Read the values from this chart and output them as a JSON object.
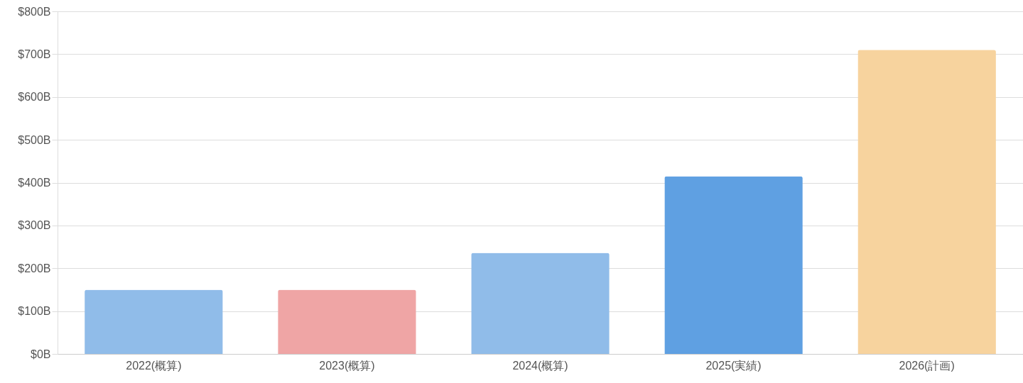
{
  "chart_data": {
    "type": "bar",
    "categories": [
      "2022(概算)",
      "2023(概算)",
      "2024(概算)",
      "2025(実績)",
      "2026(計画)"
    ],
    "values": [
      150,
      150,
      236,
      415,
      710
    ],
    "colors": [
      "#90bce9",
      "#efa5a5",
      "#90bce9",
      "#5fa0e2",
      "#f7d39e"
    ],
    "ylim": [
      0,
      800
    ],
    "yticks": [
      {
        "value": 0,
        "label": "$0B"
      },
      {
        "value": 100,
        "label": "$100B"
      },
      {
        "value": 200,
        "label": "$200B"
      },
      {
        "value": 300,
        "label": "$300B"
      },
      {
        "value": 400,
        "label": "$400B"
      },
      {
        "value": 500,
        "label": "$500B"
      },
      {
        "value": 600,
        "label": "$600B"
      },
      {
        "value": 700,
        "label": "$700B"
      },
      {
        "value": 800,
        "label": "$800B"
      }
    ],
    "grid": "y"
  }
}
